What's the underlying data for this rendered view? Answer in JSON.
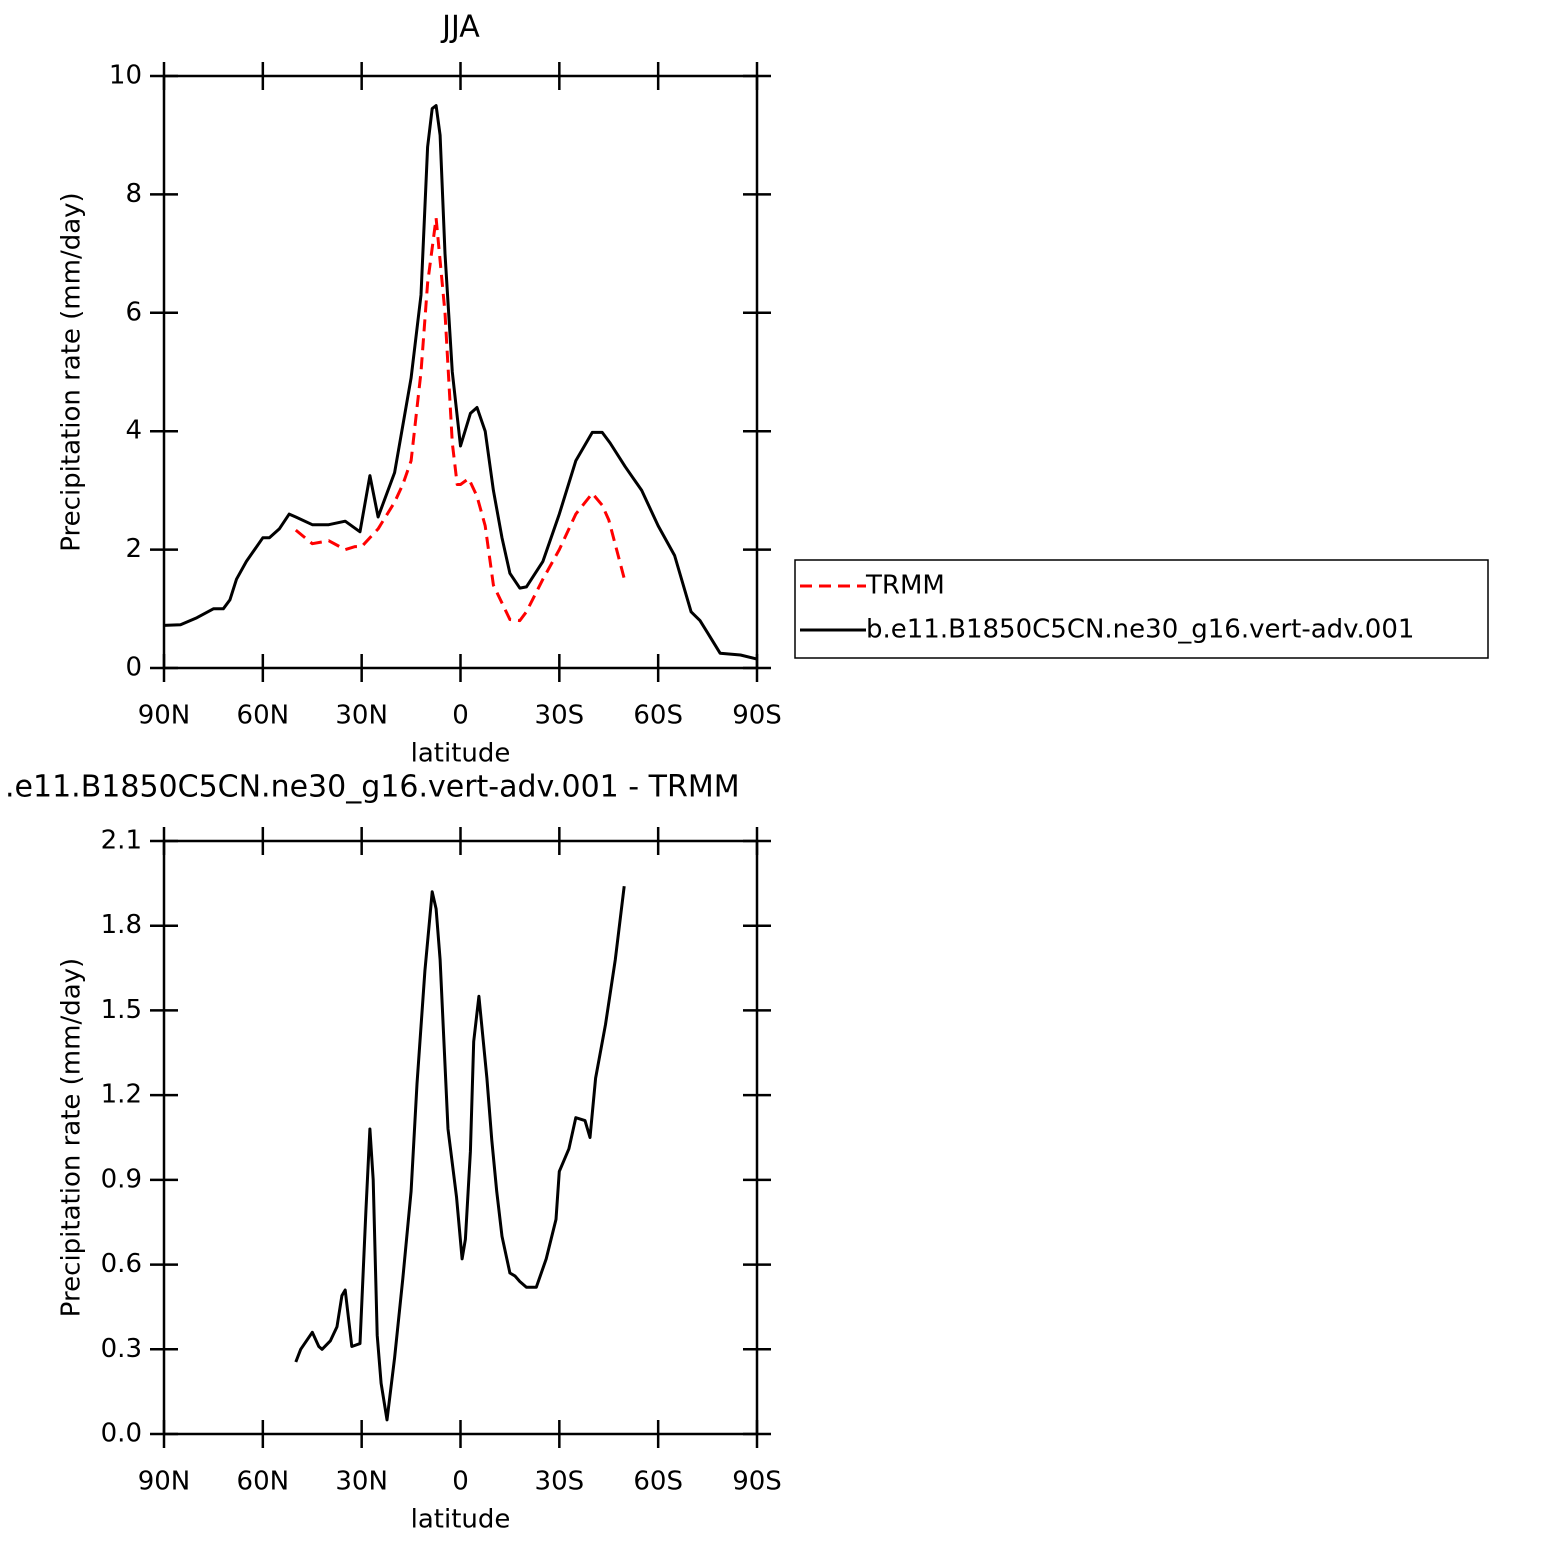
{
  "chart_data": [
    {
      "type": "line",
      "title": "JJA",
      "xlabel": "latitude",
      "ylabel": "Precipitation rate (mm/day)",
      "xlim": [
        90,
        -90
      ],
      "xticks": [
        {
          "value": 90,
          "label": "90N"
        },
        {
          "value": 60,
          "label": "60N"
        },
        {
          "value": 30,
          "label": "30N"
        },
        0,
        {
          "value": -30,
          "label": "30S"
        },
        {
          "value": -60,
          "label": "60S"
        },
        {
          "value": -90,
          "label": "90S"
        }
      ],
      "ylim": [
        0,
        10
      ],
      "yticks": [
        0,
        2,
        4,
        6,
        8,
        10
      ],
      "legend": "right",
      "series": [
        {
          "name": "TRMM",
          "color": "#ff0000",
          "style": "dashed",
          "x": [
            50,
            45,
            40,
            35,
            32,
            30,
            25,
            20,
            17.5,
            15,
            12,
            10,
            7.4,
            4.7,
            2.5,
            1,
            0,
            -2.5,
            -5,
            -7.5,
            -10,
            -15,
            -18,
            -20,
            -25,
            -30,
            -35,
            -40,
            -43,
            -45,
            -50
          ],
          "values": [
            2.33,
            2.1,
            2.15,
            2.0,
            2.05,
            2.05,
            2.35,
            2.8,
            3.1,
            3.5,
            5.0,
            6.5,
            7.6,
            6.0,
            3.8,
            3.1,
            3.1,
            3.2,
            2.9,
            2.4,
            1.4,
            0.82,
            0.8,
            0.95,
            1.5,
            2.0,
            2.6,
            2.95,
            2.75,
            2.5,
            1.45
          ]
        },
        {
          "name": "b.e11.B1850C5CN.ne30_g16.vert-adv.001",
          "color": "#000000",
          "style": "solid",
          "x": [
            90,
            85,
            80,
            75,
            72,
            70,
            68,
            65,
            60,
            58,
            55,
            52,
            50,
            45,
            40,
            35,
            30.5,
            27.5,
            25,
            20,
            15,
            12,
            10,
            8.6,
            7.4,
            6.2,
            4.7,
            2.5,
            0,
            -3,
            -5,
            -7.5,
            -10,
            -12.6,
            -15,
            -18,
            -20,
            -25,
            -30,
            -35,
            -40,
            -43,
            -45.4,
            -50,
            -55,
            -60,
            -65,
            -70,
            -72.7,
            -75.5,
            -78.8,
            -85,
            -90
          ],
          "values": [
            0.72,
            0.73,
            0.85,
            1.0,
            1.0,
            1.15,
            1.5,
            1.8,
            2.2,
            2.2,
            2.35,
            2.6,
            2.55,
            2.42,
            2.42,
            2.48,
            2.3,
            3.25,
            2.55,
            3.3,
            4.9,
            6.3,
            8.8,
            9.45,
            9.5,
            9.0,
            7.0,
            5.0,
            3.75,
            4.3,
            4.4,
            4.0,
            3.0,
            2.2,
            1.6,
            1.35,
            1.37,
            1.8,
            2.6,
            3.5,
            3.98,
            3.98,
            3.8,
            3.4,
            3.0,
            2.4,
            1.9,
            0.95,
            0.8,
            0.55,
            0.25,
            0.22,
            0.15
          ]
        }
      ]
    },
    {
      "type": "line",
      "title": ".e11.B1850C5CN.ne30_g16.vert-adv.001 - TRMM",
      "xlabel": "latitude",
      "ylabel": "Precipitation rate (mm/day)",
      "xlim": [
        90,
        -90
      ],
      "xticks": [
        {
          "value": 90,
          "label": "90N"
        },
        {
          "value": 60,
          "label": "60N"
        },
        {
          "value": 30,
          "label": "30N"
        },
        0,
        {
          "value": -30,
          "label": "30S"
        },
        {
          "value": -60,
          "label": "60S"
        },
        {
          "value": -90,
          "label": "90S"
        }
      ],
      "ylim": [
        0,
        2.1
      ],
      "yticks": [
        {
          "value": 0,
          "label": "0.0"
        },
        0.3,
        0.6,
        0.9,
        1.2,
        1.5,
        1.8,
        2.1
      ],
      "series": [
        {
          "color": "#000000",
          "style": "solid",
          "x": [
            50,
            48.5,
            45,
            43,
            42,
            39.5,
            37.5,
            36,
            35,
            33,
            30.5,
            28.7,
            27.5,
            26.5,
            25.3,
            24.1,
            22.3,
            20,
            17.5,
            15,
            13.2,
            10.8,
            8.6,
            7.4,
            6.2,
            3.8,
            1.2,
            -0.5,
            -1.5,
            -3,
            -4,
            -5.6,
            -8,
            -9.5,
            -11,
            -12.6,
            -15,
            -16.5,
            -18,
            -20,
            -23,
            -26,
            -29,
            -30,
            -32.9,
            -35,
            -37.8,
            -39.3,
            -41,
            -44,
            -47,
            -49.7
          ],
          "values": [
            0.255,
            0.3,
            0.36,
            0.31,
            0.3,
            0.33,
            0.38,
            0.49,
            0.51,
            0.31,
            0.32,
            0.79,
            1.08,
            0.9,
            0.35,
            0.18,
            0.05,
            0.27,
            0.55,
            0.86,
            1.24,
            1.64,
            1.92,
            1.86,
            1.68,
            1.08,
            0.84,
            0.62,
            0.69,
            1.0,
            1.39,
            1.55,
            1.26,
            1.04,
            0.86,
            0.7,
            0.57,
            0.56,
            0.54,
            0.52,
            0.52,
            0.62,
            0.76,
            0.93,
            1.01,
            1.12,
            1.11,
            1.05,
            1.26,
            1.45,
            1.68,
            1.94
          ]
        }
      ]
    }
  ]
}
